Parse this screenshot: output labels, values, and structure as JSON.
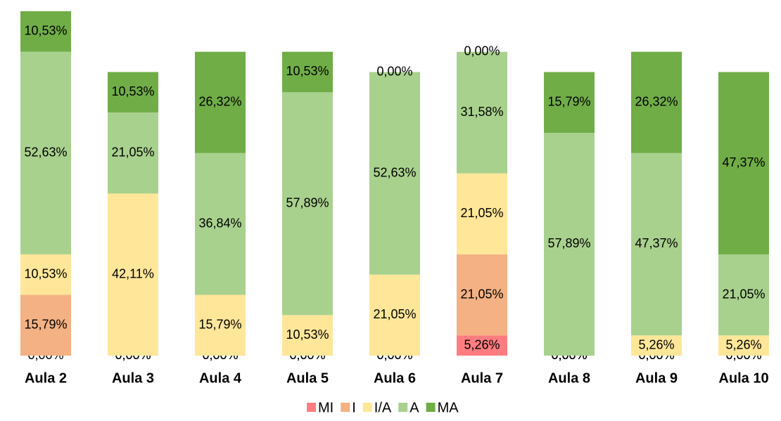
{
  "chart_data": {
    "type": "stacked_bar",
    "categories": [
      "Aula 2",
      "Aula 3",
      "Aula 4",
      "Aula 5",
      "Aula 6",
      "Aula 7",
      "Aula 8",
      "Aula 9",
      "Aula 10"
    ],
    "series": [
      {
        "name": "MI",
        "color": "#ff7c80",
        "values": [
          0,
          0,
          0,
          0,
          0,
          5.26,
          0,
          0,
          0
        ],
        "value_labels": [
          "0,00%",
          "0,00%",
          "0,00%",
          "0,00%",
          "0,00%",
          "5,26%",
          "0,00%",
          "0,00%",
          "0,00%"
        ]
      },
      {
        "name": "I",
        "color": "#f4b183",
        "values": [
          15.79,
          0,
          0,
          0,
          0,
          21.05,
          0,
          0,
          0
        ],
        "value_labels": [
          "15,79%",
          "0,00%",
          "0,00%",
          "0,00%",
          "0,00%",
          "21,05%",
          "0,00%",
          "0,00%",
          "0,00%"
        ]
      },
      {
        "name": "I/A",
        "color": "#ffe699",
        "values": [
          10.53,
          42.11,
          15.79,
          10.53,
          21.05,
          21.05,
          0,
          5.26,
          5.26
        ],
        "value_labels": [
          "10,53%",
          "42,11%",
          "15,79%",
          "10,53%",
          "21,05%",
          "21,05%",
          "0,00%",
          "5,26%",
          "5,26%"
        ]
      },
      {
        "name": "A",
        "color": "#a9d18e",
        "values": [
          52.63,
          21.05,
          36.84,
          57.89,
          52.63,
          31.58,
          57.89,
          47.37,
          21.05
        ],
        "value_labels": [
          "52,63%",
          "21,05%",
          "36,84%",
          "57,89%",
          "52,63%",
          "31,58%",
          "57,89%",
          "47,37%",
          "21,05%"
        ]
      },
      {
        "name": "MA",
        "color": "#70ad47",
        "values": [
          10.53,
          10.53,
          26.32,
          10.53,
          0,
          0,
          15.79,
          26.32,
          47.37
        ],
        "value_labels": [
          "10,53%",
          "10,53%",
          "26,32%",
          "10,53%",
          "0,00%",
          "0,00%",
          "15,79%",
          "26,32%",
          "47,37%"
        ]
      }
    ]
  }
}
